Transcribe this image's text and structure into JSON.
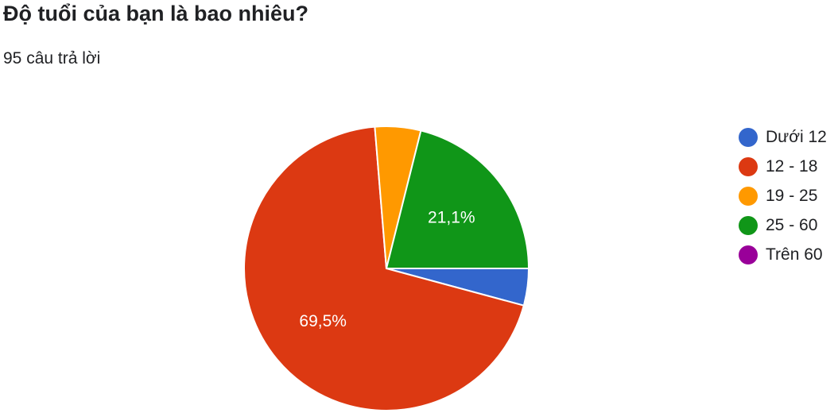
{
  "header": {
    "title": "Độ tuổi của bạn là bao nhiêu?",
    "response_count": "95 câu trả lời"
  },
  "chart_data": {
    "type": "pie",
    "title": "Độ tuổi của bạn là bao nhiêu?",
    "total_responses": 95,
    "legend_position": "right",
    "slices": [
      {
        "label": "Dưới 12",
        "value": 4.2,
        "percent_label": "",
        "color": "#3366cc"
      },
      {
        "label": "12 - 18",
        "value": 69.5,
        "percent_label": "69,5%",
        "color": "#dc3912"
      },
      {
        "label": "19 - 25",
        "value": 5.2,
        "percent_label": "",
        "color": "#ff9900"
      },
      {
        "label": "25 - 60",
        "value": 21.1,
        "percent_label": "21,1%",
        "color": "#109618"
      },
      {
        "label": "Trên 60",
        "value": 0,
        "percent_label": "",
        "color": "#990099"
      }
    ]
  }
}
